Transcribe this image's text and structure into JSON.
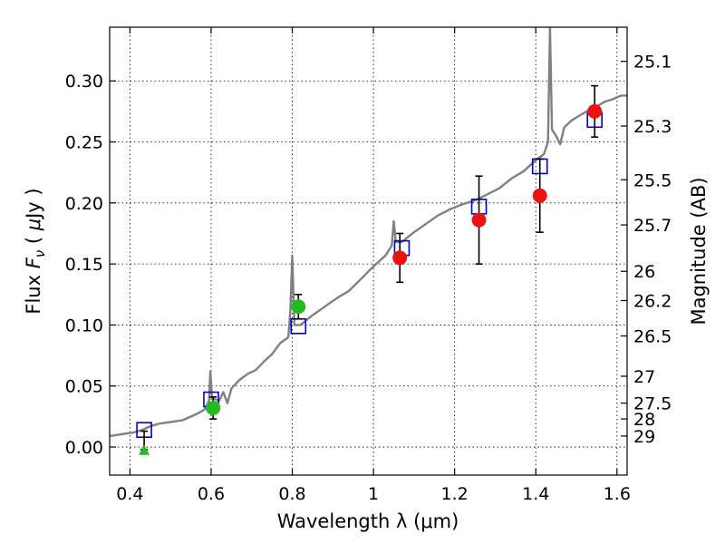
{
  "chart_data": {
    "type": "scatter",
    "title": "",
    "xlabel": "Wavelength  λ (μm)",
    "ylabel_left": "Flux  F_ν  ( μJy )",
    "ylabel_left_parts": {
      "a": "Flux  ",
      "b": "F",
      "c": "ν",
      "d": "  ( ",
      "e": "μ",
      "f": "Jy )"
    },
    "ylabel_right": "Magnitude (AB)",
    "xlim": [
      0.35,
      1.625
    ],
    "ylim": [
      -0.023,
      0.344
    ],
    "grid": true,
    "x_ticks": [
      {
        "value": 0.4,
        "label": "0.4"
      },
      {
        "value": 0.6,
        "label": "0.6"
      },
      {
        "value": 0.8,
        "label": "0.8"
      },
      {
        "value": 1.0,
        "label": "1"
      },
      {
        "value": 1.2,
        "label": "1.2"
      },
      {
        "value": 1.4,
        "label": "1.4"
      },
      {
        "value": 1.6,
        "label": "1.6"
      }
    ],
    "y_ticks": [
      {
        "value": 0.0,
        "label": "0.00"
      },
      {
        "value": 0.05,
        "label": "0.05"
      },
      {
        "value": 0.1,
        "label": "0.10"
      },
      {
        "value": 0.15,
        "label": "0.15"
      },
      {
        "value": 0.2,
        "label": "0.20"
      },
      {
        "value": 0.25,
        "label": "0.25"
      },
      {
        "value": 0.3,
        "label": "0.30"
      }
    ],
    "mag_ticks": [
      {
        "flux": 0.316,
        "label": "25.1"
      },
      {
        "flux": 0.263,
        "label": "25.3"
      },
      {
        "flux": 0.219,
        "label": "25.5"
      },
      {
        "flux": 0.182,
        "label": "25.7"
      },
      {
        "flux": 0.144,
        "label": "26"
      },
      {
        "flux": 0.12,
        "label": "26.2"
      },
      {
        "flux": 0.091,
        "label": "26.5"
      },
      {
        "flux": 0.058,
        "label": "27"
      },
      {
        "flux": 0.036,
        "label": "27.5"
      },
      {
        "flux": 0.023,
        "label": "28"
      },
      {
        "flux": 0.009,
        "label": "29"
      }
    ],
    "colors": {
      "spectrum": "#808080",
      "model": "#0000cc",
      "green": "#22bb22",
      "red": "#ee1111",
      "errorbar": "#000000"
    },
    "series": [
      {
        "kind": "spectrum",
        "points": [
          [
            0.35,
            0.009
          ],
          [
            0.37,
            0.01
          ],
          [
            0.39,
            0.011
          ],
          [
            0.41,
            0.012
          ],
          [
            0.43,
            0.014
          ],
          [
            0.45,
            0.017
          ],
          [
            0.47,
            0.019
          ],
          [
            0.49,
            0.02
          ],
          [
            0.51,
            0.021
          ],
          [
            0.53,
            0.022
          ],
          [
            0.55,
            0.025
          ],
          [
            0.57,
            0.028
          ],
          [
            0.585,
            0.031
          ],
          [
            0.595,
            0.038
          ],
          [
            0.598,
            0.062
          ],
          [
            0.602,
            0.04
          ],
          [
            0.62,
            0.038
          ],
          [
            0.63,
            0.045
          ],
          [
            0.64,
            0.036
          ],
          [
            0.65,
            0.048
          ],
          [
            0.67,
            0.055
          ],
          [
            0.69,
            0.06
          ],
          [
            0.71,
            0.063
          ],
          [
            0.73,
            0.07
          ],
          [
            0.75,
            0.076
          ],
          [
            0.77,
            0.085
          ],
          [
            0.79,
            0.09
          ],
          [
            0.795,
            0.11
          ],
          [
            0.8,
            0.157
          ],
          [
            0.805,
            0.1
          ],
          [
            0.82,
            0.1
          ],
          [
            0.85,
            0.108
          ],
          [
            0.88,
            0.115
          ],
          [
            0.91,
            0.122
          ],
          [
            0.94,
            0.128
          ],
          [
            0.97,
            0.138
          ],
          [
            1.0,
            0.148
          ],
          [
            1.03,
            0.157
          ],
          [
            1.045,
            0.165
          ],
          [
            1.05,
            0.185
          ],
          [
            1.055,
            0.168
          ],
          [
            1.07,
            0.168
          ],
          [
            1.1,
            0.176
          ],
          [
            1.13,
            0.183
          ],
          [
            1.16,
            0.19
          ],
          [
            1.19,
            0.195
          ],
          [
            1.22,
            0.199
          ],
          [
            1.25,
            0.202
          ],
          [
            1.28,
            0.207
          ],
          [
            1.31,
            0.212
          ],
          [
            1.34,
            0.22
          ],
          [
            1.37,
            0.226
          ],
          [
            1.4,
            0.235
          ],
          [
            1.42,
            0.24
          ],
          [
            1.43,
            0.25
          ],
          [
            1.435,
            0.344
          ],
          [
            1.44,
            0.26
          ],
          [
            1.45,
            0.255
          ],
          [
            1.46,
            0.248
          ],
          [
            1.47,
            0.262
          ],
          [
            1.49,
            0.268
          ],
          [
            1.51,
            0.272
          ],
          [
            1.53,
            0.276
          ],
          [
            1.55,
            0.279
          ],
          [
            1.57,
            0.283
          ],
          [
            1.59,
            0.285
          ],
          [
            1.61,
            0.288
          ],
          [
            1.625,
            0.288
          ]
        ]
      },
      {
        "kind": "model_squares",
        "points": [
          [
            0.435,
            0.014
          ],
          [
            0.6,
            0.039
          ],
          [
            0.815,
            0.099
          ],
          [
            1.07,
            0.163
          ],
          [
            1.26,
            0.197
          ],
          [
            1.41,
            0.23
          ],
          [
            1.545,
            0.268
          ]
        ]
      },
      {
        "kind": "green_points",
        "points": [
          [
            0.605,
            0.032,
            0.009
          ],
          [
            0.815,
            0.115,
            0.01
          ]
        ]
      },
      {
        "kind": "green_upper_limit",
        "points": [
          [
            0.435,
            -0.002,
            0.015
          ]
        ]
      },
      {
        "kind": "red_points",
        "points": [
          [
            1.065,
            0.155,
            0.02
          ],
          [
            1.26,
            0.186,
            0.036
          ],
          [
            1.41,
            0.206,
            0.03
          ],
          [
            1.545,
            0.275,
            0.021
          ]
        ]
      }
    ]
  }
}
